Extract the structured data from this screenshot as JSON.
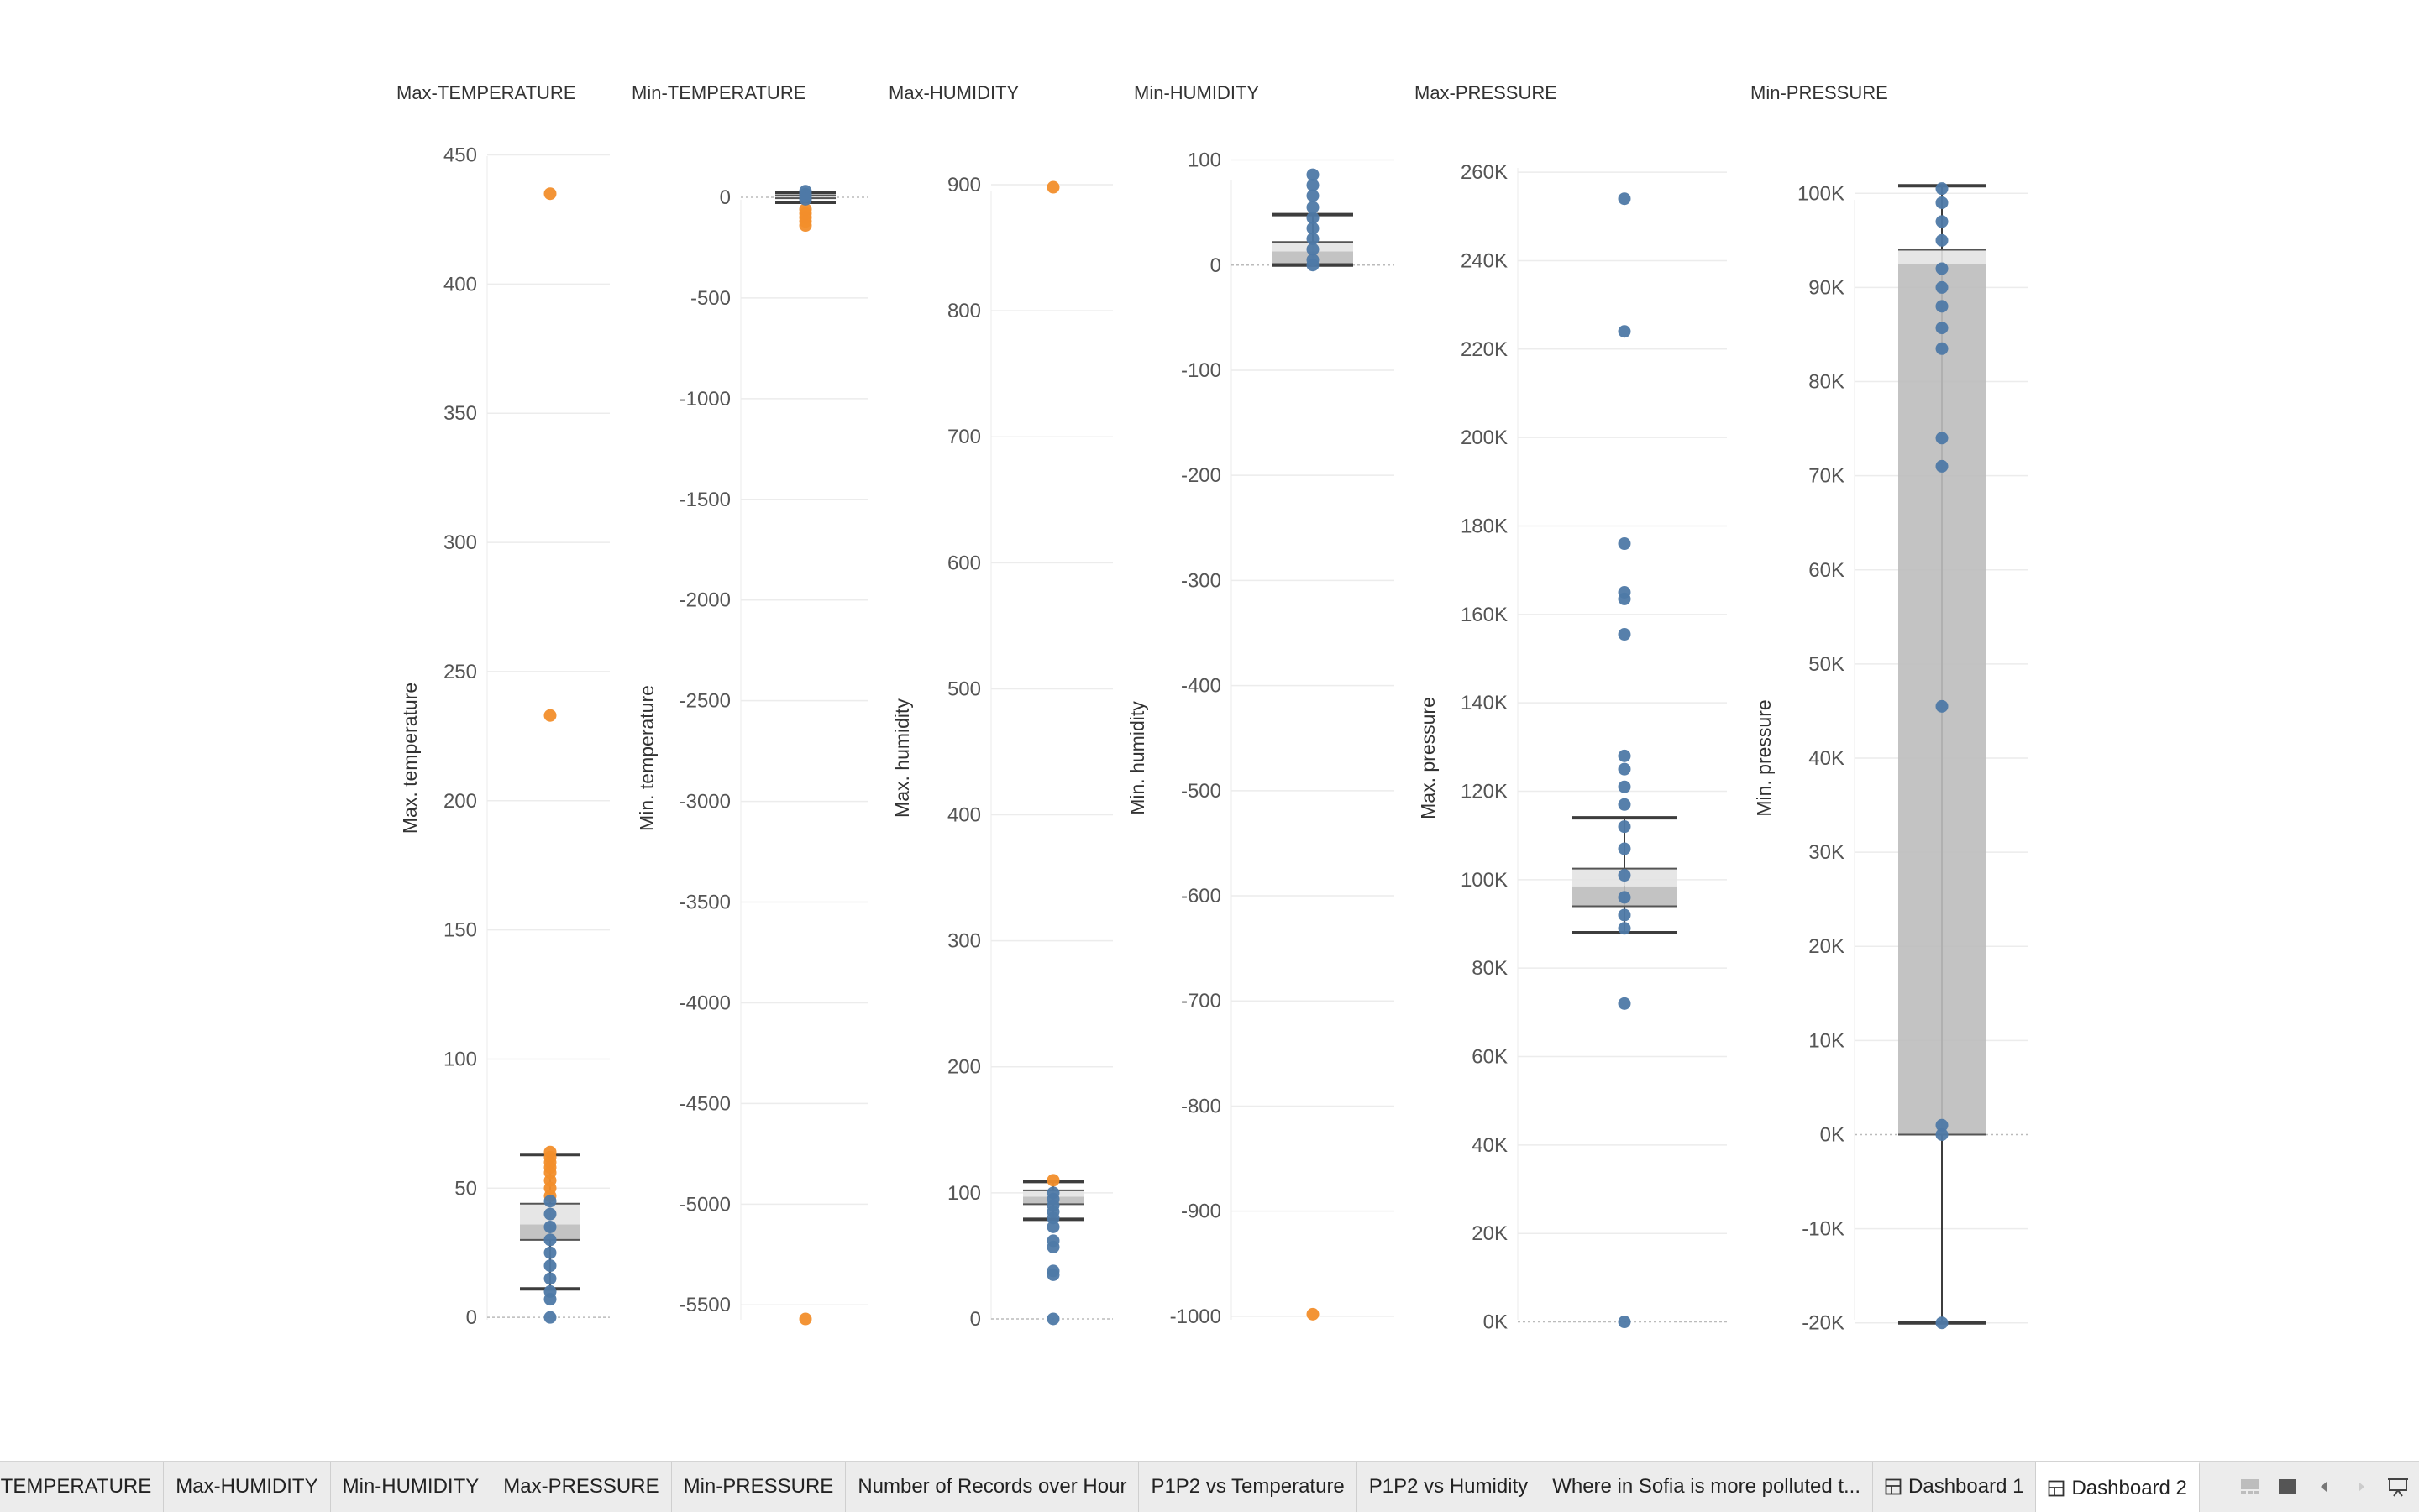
{
  "chart_data": [
    {
      "type": "boxplot",
      "title": "Max-TEMPERATURE",
      "ylabel": "Max. temperature",
      "ylim": [
        -24,
        457
      ],
      "ticks": [
        0,
        50,
        100,
        150,
        200,
        250,
        300,
        350,
        400,
        450
      ],
      "tick_labels": [
        "0",
        "50",
        "100",
        "150",
        "200",
        "250",
        "300",
        "350",
        "400",
        "450"
      ],
      "box": {
        "whisker_low": 11,
        "q1": 30,
        "median": 36,
        "q3": 44,
        "whisker_high": 63
      },
      "outliers": [
        {
          "value": 435,
          "color": "#f28e2b"
        },
        {
          "value": 233,
          "color": "#f28e2b"
        },
        {
          "value": 64,
          "color": "#f28e2b"
        },
        {
          "value": 62,
          "color": "#f28e2b"
        },
        {
          "value": 60,
          "color": "#f28e2b"
        },
        {
          "value": 58,
          "color": "#f28e2b"
        },
        {
          "value": 56,
          "color": "#f28e2b"
        },
        {
          "value": 53,
          "color": "#f28e2b"
        },
        {
          "value": 50,
          "color": "#f28e2b"
        },
        {
          "value": 47,
          "color": "#f28e2b"
        },
        {
          "value": 45,
          "color": "#4e79a7"
        },
        {
          "value": 40,
          "color": "#4e79a7"
        },
        {
          "value": 35,
          "color": "#4e79a7"
        },
        {
          "value": 30,
          "color": "#4e79a7"
        },
        {
          "value": 25,
          "color": "#4e79a7"
        },
        {
          "value": 20,
          "color": "#4e79a7"
        },
        {
          "value": 15,
          "color": "#4e79a7"
        },
        {
          "value": 10,
          "color": "#4e79a7"
        },
        {
          "value": 7,
          "color": "#4e79a7"
        },
        {
          "value": 0,
          "color": "#4e79a7"
        }
      ]
    },
    {
      "type": "boxplot",
      "title": "Min-TEMPERATURE",
      "ylabel": "Min. temperature",
      "ylim": [
        -5870,
        300
      ],
      "ticks": [
        0,
        -500,
        -1000,
        -1500,
        -2000,
        -2500,
        -3000,
        -3500,
        -4000,
        -4500,
        -5000,
        -5500
      ],
      "tick_labels": [
        "0",
        "-500",
        "-1000",
        "-1500",
        "-2000",
        "-2500",
        "-3000",
        "-3500",
        "-4000",
        "-4500",
        "-5000",
        "-5500"
      ],
      "box": {
        "whisker_low": -25,
        "q1": -5,
        "median": 2,
        "q3": 10,
        "whisker_high": 25
      },
      "outliers": [
        {
          "value": -5570,
          "color": "#f28e2b"
        },
        {
          "value": -140,
          "color": "#f28e2b"
        },
        {
          "value": -120,
          "color": "#f28e2b"
        },
        {
          "value": -100,
          "color": "#f28e2b"
        },
        {
          "value": -80,
          "color": "#f28e2b"
        },
        {
          "value": -60,
          "color": "#f28e2b"
        },
        {
          "value": 30,
          "color": "#4e79a7"
        },
        {
          "value": 15,
          "color": "#4e79a7"
        },
        {
          "value": 5,
          "color": "#4e79a7"
        },
        {
          "value": -10,
          "color": "#4e79a7"
        }
      ]
    },
    {
      "type": "boxplot",
      "title": "Max-HUMIDITY",
      "ylabel": "Max. humidity",
      "ylim": [
        -48,
        938
      ],
      "ticks": [
        0,
        100,
        200,
        300,
        400,
        500,
        600,
        700,
        800,
        900
      ],
      "tick_labels": [
        "0",
        "100",
        "200",
        "300",
        "400",
        "500",
        "600",
        "700",
        "800",
        "900"
      ],
      "box": {
        "whisker_low": 79,
        "q1": 91,
        "median": 97,
        "q3": 102,
        "whisker_high": 109
      },
      "outliers": [
        {
          "value": 898,
          "color": "#f28e2b"
        },
        {
          "value": 110,
          "color": "#f28e2b"
        },
        {
          "value": 100,
          "color": "#4e79a7"
        },
        {
          "value": 95,
          "color": "#4e79a7"
        },
        {
          "value": 90,
          "color": "#4e79a7"
        },
        {
          "value": 85,
          "color": "#4e79a7"
        },
        {
          "value": 80,
          "color": "#4e79a7"
        },
        {
          "value": 73,
          "color": "#4e79a7"
        },
        {
          "value": 62,
          "color": "#4e79a7"
        },
        {
          "value": 57,
          "color": "#4e79a7"
        },
        {
          "value": 38,
          "color": "#4e79a7"
        },
        {
          "value": 35,
          "color": "#4e79a7"
        },
        {
          "value": 0,
          "color": "#4e79a7"
        }
      ]
    },
    {
      "type": "boxplot",
      "title": "Min-HUMIDITY",
      "ylabel": "Min. humidity",
      "ylim": [
        -1060,
        122
      ],
      "ticks": [
        100,
        0,
        -100,
        -200,
        -300,
        -400,
        -500,
        -600,
        -700,
        -800,
        -900,
        -1000
      ],
      "tick_labels": [
        "100",
        "0",
        "-100",
        "-200",
        "-300",
        "-400",
        "-500",
        "-600",
        "-700",
        "-800",
        "-900",
        "-1000"
      ],
      "box": {
        "whisker_low": 0,
        "q1": 1,
        "median": 13,
        "q3": 22,
        "whisker_high": 48
      },
      "outliers": [
        {
          "value": -998,
          "color": "#f28e2b"
        },
        {
          "value": 86,
          "color": "#4e79a7"
        },
        {
          "value": 76,
          "color": "#4e79a7"
        },
        {
          "value": 66,
          "color": "#4e79a7"
        },
        {
          "value": 55,
          "color": "#4e79a7"
        },
        {
          "value": 45,
          "color": "#4e79a7"
        },
        {
          "value": 35,
          "color": "#4e79a7"
        },
        {
          "value": 25,
          "color": "#4e79a7"
        },
        {
          "value": 15,
          "color": "#4e79a7"
        },
        {
          "value": 5,
          "color": "#4e79a7"
        },
        {
          "value": 0,
          "color": "#4e79a7"
        }
      ]
    },
    {
      "type": "boxplot",
      "title": "Max-PRESSURE",
      "ylabel": "Max. pressure",
      "ylim": [
        -13000,
        268000
      ],
      "ticks": [
        0,
        20000,
        40000,
        60000,
        80000,
        100000,
        120000,
        140000,
        160000,
        180000,
        200000,
        220000,
        240000,
        260000
      ],
      "tick_labels": [
        "0K",
        "20K",
        "40K",
        "60K",
        "80K",
        "100K",
        "120K",
        "140K",
        "160K",
        "180K",
        "200K",
        "220K",
        "240K",
        "260K"
      ],
      "box": {
        "whisker_low": 88000,
        "q1": 94000,
        "median": 98500,
        "q3": 102500,
        "whisker_high": 114000
      },
      "outliers": [
        {
          "value": 254000,
          "color": "#4e79a7"
        },
        {
          "value": 224000,
          "color": "#4e79a7"
        },
        {
          "value": 176000,
          "color": "#4e79a7"
        },
        {
          "value": 165000,
          "color": "#4e79a7"
        },
        {
          "value": 163500,
          "color": "#4e79a7"
        },
        {
          "value": 155500,
          "color": "#4e79a7"
        },
        {
          "value": 128000,
          "color": "#4e79a7"
        },
        {
          "value": 125000,
          "color": "#4e79a7"
        },
        {
          "value": 121000,
          "color": "#4e79a7"
        },
        {
          "value": 117000,
          "color": "#4e79a7"
        },
        {
          "value": 112000,
          "color": "#4e79a7"
        },
        {
          "value": 107000,
          "color": "#4e79a7"
        },
        {
          "value": 101000,
          "color": "#4e79a7"
        },
        {
          "value": 96000,
          "color": "#4e79a7"
        },
        {
          "value": 92000,
          "color": "#4e79a7"
        },
        {
          "value": 89000,
          "color": "#4e79a7"
        },
        {
          "value": 72000,
          "color": "#4e79a7"
        },
        {
          "value": 0,
          "color": "#4e79a7"
        }
      ]
    },
    {
      "type": "boxplot",
      "title": "Min-PRESSURE",
      "ylabel": "Min. pressure",
      "ylim": [
        -26000,
        106000
      ],
      "ticks": [
        100000,
        90000,
        80000,
        70000,
        60000,
        50000,
        40000,
        30000,
        20000,
        10000,
        0,
        -10000,
        -20000
      ],
      "tick_labels": [
        "100K",
        "90K",
        "80K",
        "70K",
        "60K",
        "50K",
        "40K",
        "30K",
        "20K",
        "10K",
        "0K",
        "-10K",
        "-20K"
      ],
      "box": {
        "whisker_low": -20000,
        "q1": 0,
        "median": 92500,
        "q3": 94000,
        "whisker_high": 100800
      },
      "outliers": [
        {
          "value": 100500,
          "color": "#4e79a7"
        },
        {
          "value": 99000,
          "color": "#4e79a7"
        },
        {
          "value": 97000,
          "color": "#4e79a7"
        },
        {
          "value": 95000,
          "color": "#4e79a7"
        },
        {
          "value": 92000,
          "color": "#4e79a7"
        },
        {
          "value": 90000,
          "color": "#4e79a7"
        },
        {
          "value": 88000,
          "color": "#4e79a7"
        },
        {
          "value": 85700,
          "color": "#4e79a7"
        },
        {
          "value": 83500,
          "color": "#4e79a7"
        },
        {
          "value": 74000,
          "color": "#4e79a7"
        },
        {
          "value": 71000,
          "color": "#4e79a7"
        },
        {
          "value": 45500,
          "color": "#4e79a7"
        },
        {
          "value": 1000,
          "color": "#4e79a7"
        },
        {
          "value": 0,
          "color": "#4e79a7"
        },
        {
          "value": -20000,
          "color": "#4e79a7"
        }
      ]
    }
  ],
  "tabs": [
    {
      "label": "in-TEMPERATURE",
      "active": false,
      "icon": ""
    },
    {
      "label": "Max-HUMIDITY",
      "active": false,
      "icon": ""
    },
    {
      "label": "Min-HUMIDITY",
      "active": false,
      "icon": ""
    },
    {
      "label": "Max-PRESSURE",
      "active": false,
      "icon": ""
    },
    {
      "label": "Min-PRESSURE",
      "active": false,
      "icon": ""
    },
    {
      "label": "Number of Records over Hour",
      "active": false,
      "icon": ""
    },
    {
      "label": "P1P2 vs Temperature",
      "active": false,
      "icon": ""
    },
    {
      "label": "P1P2 vs Humidity",
      "active": false,
      "icon": ""
    },
    {
      "label": "Where in Sofia is more polluted t...",
      "active": false,
      "icon": ""
    },
    {
      "label": "Dashboard 1",
      "active": false,
      "icon": "dashboard-grid-icon"
    },
    {
      "label": "Dashboard 2",
      "active": true,
      "icon": "dashboard-grid-icon"
    }
  ],
  "nav": [
    {
      "name": "filmstrip-view-icon"
    },
    {
      "name": "single-view-icon"
    },
    {
      "name": "previous-sheet-icon"
    },
    {
      "name": "next-sheet-icon"
    },
    {
      "name": "presentation-mode-icon"
    }
  ],
  "colors": {
    "outlier_orange": "#f28e2b",
    "point_blue": "#4e79a7",
    "box_fill": "#bdbdbd",
    "box_upper_fill": "#e3e3e3",
    "whisker": "#3d3d3d",
    "gridline": "#ececec",
    "tick_text": "#555555",
    "title_text": "#333333"
  }
}
